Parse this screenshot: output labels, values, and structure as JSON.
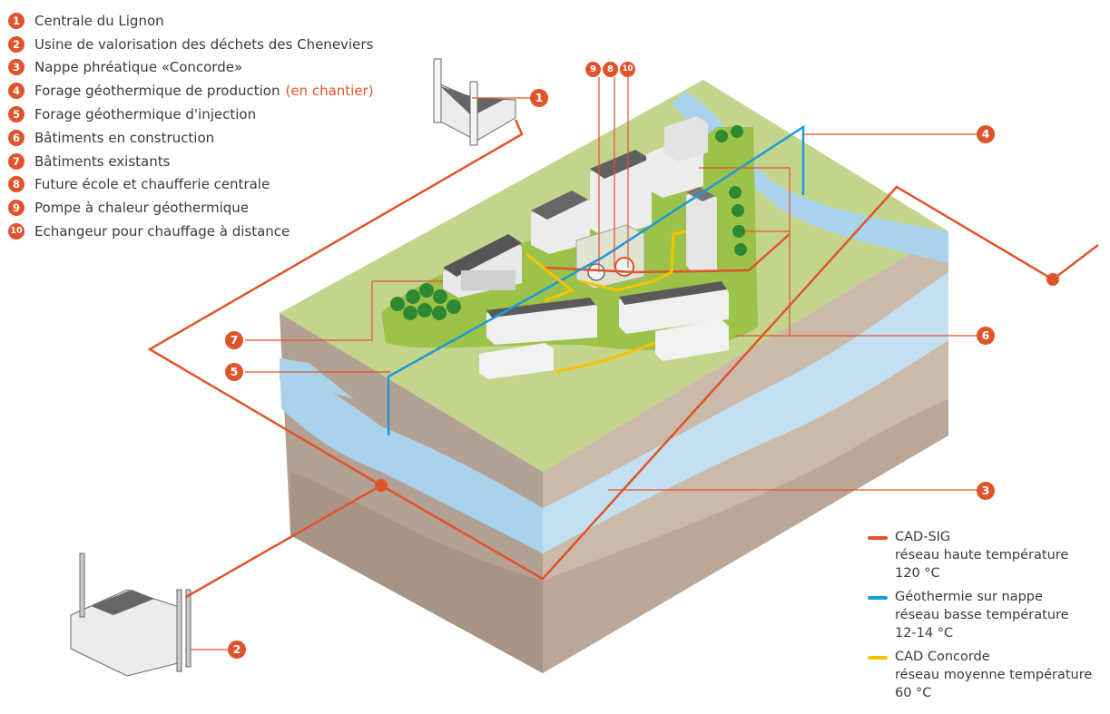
{
  "legend_items": [
    {
      "number": "1",
      "label": "Centrale du Lignon"
    },
    {
      "number": "2",
      "label": "Usine de valorisation des déchets des Cheneviers"
    },
    {
      "number": "3",
      "label": "Nappe phréatique «Concorde»"
    },
    {
      "number": "4",
      "label": "Forage géothermique de production",
      "note": "(en chantier)"
    },
    {
      "number": "5",
      "label": "Forage géothermique d'injection"
    },
    {
      "number": "6",
      "label": "Bâtiments en construction"
    },
    {
      "number": "7",
      "label": "Bâtiments existants"
    },
    {
      "number": "8",
      "label": "Future école et chaufferie centrale"
    },
    {
      "number": "9",
      "label": "Pompe à chaleur géothermique"
    },
    {
      "number": "10",
      "label": "Echangeur pour chauffage à distance"
    }
  ],
  "network_legend": [
    {
      "name": "CAD-SIG",
      "desc": "réseau haute température",
      "temp": "120 °C",
      "color": "#e0542b"
    },
    {
      "name": "Géothermie sur nappe",
      "desc": "réseau basse température",
      "temp": "12-14 °C",
      "color": "#1b9ad6"
    },
    {
      "name": "CAD Concorde",
      "desc": "réseau moyenne température",
      "temp": "60 °C",
      "color": "#f5c400"
    }
  ],
  "colors": {
    "accent": "#e0542b",
    "grass": "#c3d58c",
    "grass_dark": "#9cc24a",
    "soil_side": "#bca898",
    "soil_front": "#c9b7a8",
    "aquifer": "#a9d3ec"
  },
  "markers": [
    "1",
    "2",
    "3",
    "4",
    "5",
    "6",
    "7",
    "8",
    "9",
    "10"
  ]
}
